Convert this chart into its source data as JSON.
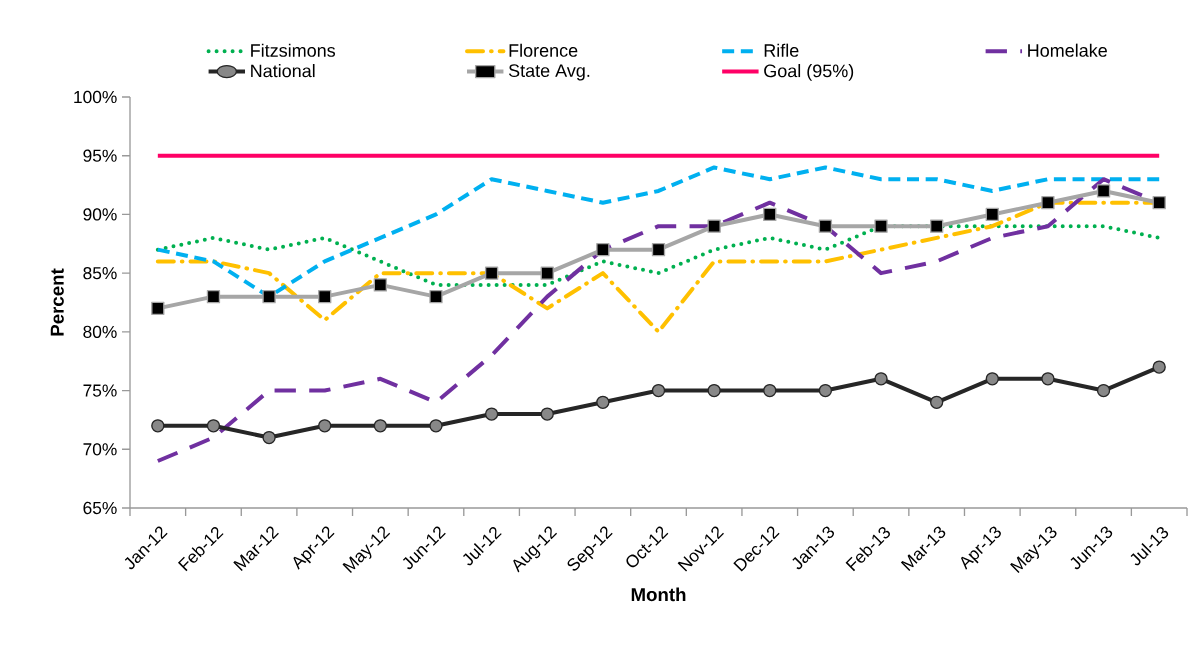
{
  "chart_data": {
    "type": "line",
    "xlabel": "Month",
    "ylabel": "Percent",
    "legend": "top",
    "categories": [
      "Jan-12",
      "Feb-12",
      "Mar-12",
      "Apr-12",
      "May-12",
      "Jun-12",
      "Jul-12",
      "Aug-12",
      "Sep-12",
      "Oct-12",
      "Nov-12",
      "Dec-12",
      "Jan-13",
      "Feb-13",
      "Mar-13",
      "Apr-13",
      "May-13",
      "Jun-13",
      "Jul-13"
    ],
    "ylim": [
      65,
      100
    ],
    "yticks": [
      {
        "value": 65,
        "label": "65%"
      },
      {
        "value": 70,
        "label": "70%"
      },
      {
        "value": 75,
        "label": "75%"
      },
      {
        "value": 80,
        "label": "80%"
      },
      {
        "value": 85,
        "label": "85%"
      },
      {
        "value": 90,
        "label": "90%"
      },
      {
        "value": 95,
        "label": "95%"
      },
      {
        "value": 100,
        "label": "100%"
      }
    ],
    "series": [
      {
        "name": "Fitzsimons",
        "color": "#00b050",
        "line_style": "dotted",
        "values": [
          87,
          88,
          87,
          88,
          86,
          84,
          84,
          84,
          86,
          85,
          87,
          88,
          87,
          89,
          89,
          89,
          89,
          89,
          88
        ]
      },
      {
        "name": "Florence",
        "color": "#ffc000",
        "line_style": "dashdot",
        "values": [
          86,
          86,
          85,
          81,
          85,
          85,
          85,
          82,
          85,
          80,
          86,
          86,
          86,
          87,
          88,
          89,
          91,
          91,
          91
        ]
      },
      {
        "name": "Rifle",
        "color": "#00b0f0",
        "line_style": "dashed",
        "values": [
          87,
          86,
          83,
          86,
          88,
          90,
          93,
          92,
          91,
          92,
          94,
          93,
          94,
          93,
          93,
          92,
          93,
          93,
          93
        ]
      },
      {
        "name": "Homelake",
        "color": "#7030a0",
        "line_style": "longdash",
        "values": [
          69,
          71,
          75,
          75,
          76,
          74,
          78,
          83,
          87,
          89,
          89,
          91,
          89,
          85,
          86,
          88,
          89,
          93,
          91
        ]
      },
      {
        "name": "National",
        "color": "#262626",
        "line_style": "solid",
        "marker": "circle",
        "values": [
          72,
          72,
          71,
          72,
          72,
          72,
          73,
          73,
          74,
          75,
          75,
          75,
          75,
          76,
          74,
          76,
          76,
          75,
          77
        ]
      },
      {
        "name": "State Avg.",
        "color": "#a6a6a6",
        "line_style": "solid",
        "marker": "square",
        "values": [
          82,
          83,
          83,
          83,
          84,
          83,
          85,
          85,
          87,
          87,
          89,
          90,
          89,
          89,
          89,
          90,
          91,
          92,
          91
        ]
      },
      {
        "name": "Goal (95%)",
        "color": "#ff0066",
        "line_style": "solid",
        "values": [
          95,
          95,
          95,
          95,
          95,
          95,
          95,
          95,
          95,
          95,
          95,
          95,
          95,
          95,
          95,
          95,
          95,
          95,
          95
        ]
      }
    ]
  }
}
